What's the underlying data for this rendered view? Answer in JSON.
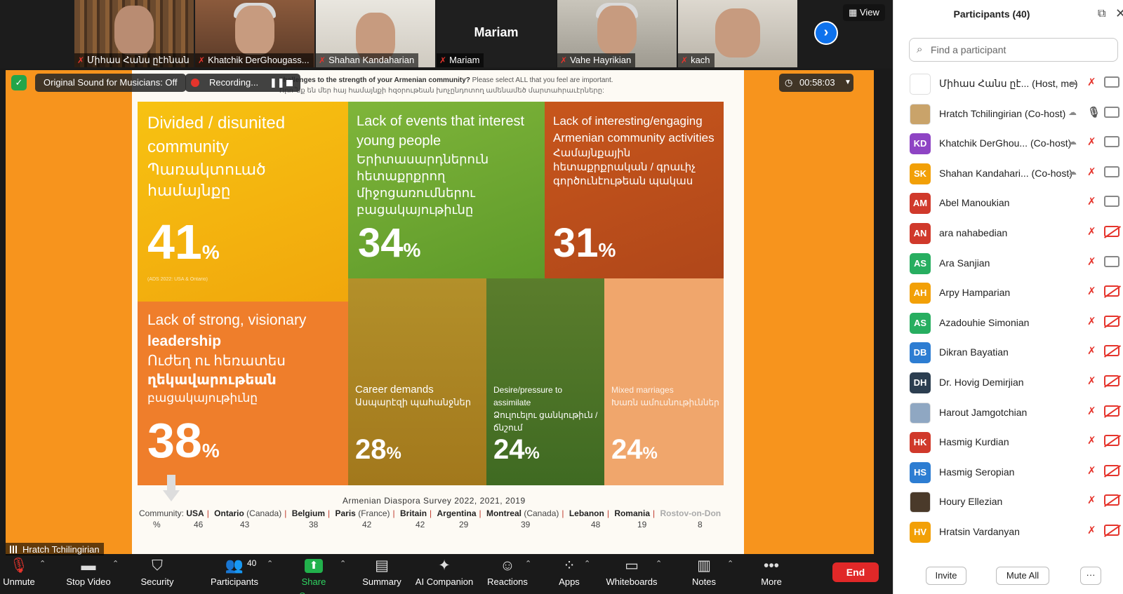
{
  "thumbnails": [
    {
      "name": "Միհաս Հանս ըէհնան"
    },
    {
      "name": "Khatchik DerGhougass..."
    },
    {
      "name": "Shahan Kandaharian"
    },
    {
      "name": "Mariam",
      "big_name": "Mariam"
    },
    {
      "name": "Vahe Hayrikian"
    },
    {
      "name": "kach"
    }
  ],
  "view_label": "View",
  "next_icon": "chevron-right-icon",
  "share": {
    "sound_label": "Original Sound for Musicians: Off",
    "recording_label": "Recording...",
    "timer": "00:58:03",
    "speaker": "Hratch Tchilingirian",
    "question_bold": "challenges to the strength of your Armenian community?",
    "question_rest": "Please select ALL that you feel are important.",
    "question_arm": "Որո՞նք են մեր հայ համայնքի հզօրութեան խոչընդոտող ամենամեծ մարտահրաւէրները:",
    "tiles": [
      {
        "id": "a",
        "title": "Divided / disunited community",
        "arm": "Պառակտուած համայնքը",
        "value": "41",
        "note": "(ADS 2022: USA & Ontario)"
      },
      {
        "id": "b",
        "title": "Lack of events that interest young people",
        "arm": "Երիտասարդներուն հետաքրքրող միջոցառումներու բացակայութիւնը",
        "value": "34"
      },
      {
        "id": "c",
        "title": "Lack of interesting/engaging Armenian community activities",
        "arm": "Համայնքային հետաքրքրական / գրաւիչ գործունէութեան պակաս",
        "value": "31"
      },
      {
        "id": "d",
        "title_1": "Lack of strong, visionary",
        "title_2": "leadership",
        "arm_1": "Ուժեղ ու հեռատես",
        "arm_2": "ղեկավարութեան",
        "arm_3": "բացակայութիւնը",
        "value": "38"
      },
      {
        "id": "e",
        "title": "Career demands",
        "arm": "Ասպարէզի պահանջներ",
        "value": "28"
      },
      {
        "id": "f",
        "title": "Desire/pressure to assimilate",
        "arm": "Ձուլուելու ցանկութիւն / ճնշում",
        "value": "24"
      },
      {
        "id": "g",
        "title": "Mixed marriages",
        "arm": "Խառն ամուսնութիւններ",
        "value": "24"
      }
    ],
    "pct_symbol": "%",
    "survey_title": "Armenian Diaspora Survey 2022, 2021, 2019",
    "community_label": "Community:",
    "communities": [
      {
        "name": "USA",
        "extra": "",
        "pct": "46"
      },
      {
        "name": "Ontario",
        "extra": " (Canada)",
        "pct": "43"
      },
      {
        "name": "Belgium",
        "extra": "",
        "pct": "38"
      },
      {
        "name": "Paris",
        "extra": " (France)",
        "pct": "42"
      },
      {
        "name": "Britain",
        "extra": "",
        "pct": "42"
      },
      {
        "name": "Argentina",
        "extra": "",
        "pct": "29"
      },
      {
        "name": "Montreal",
        "extra": " (Canada)",
        "pct": "39"
      },
      {
        "name": "Lebanon",
        "extra": "",
        "pct": "48"
      },
      {
        "name": "Romania",
        "extra": "",
        "pct": "19"
      },
      {
        "name": "Rostov-on-Don",
        "extra": "",
        "pct": "8"
      }
    ],
    "pct_label": "%"
  },
  "toolbar": {
    "unmute": "Unmute",
    "stop_video": "Stop Video",
    "security": "Security",
    "participants": "Participants",
    "participants_count": "40",
    "share_screen": "Share Screen",
    "summary": "Summary",
    "ai_companion": "AI Companion",
    "reactions": "Reactions",
    "apps": "Apps",
    "whiteboards": "Whiteboards",
    "notes": "Notes",
    "more": "More",
    "end": "End"
  },
  "panel": {
    "title": "Participants (40)",
    "search_placeholder": "Find a participant",
    "participants": [
      {
        "name": "Միհաս Հանս ըէ... (Host, me)",
        "initials": "",
        "color": "#ffffff",
        "cloud": true,
        "mic": "off",
        "cam": "on"
      },
      {
        "name": "Hratch Tchilingirian (Co-host)",
        "initials": "",
        "color": "#c9a36a",
        "cloud": true,
        "mic": "on",
        "cam": "on"
      },
      {
        "name": "Khatchik DerGhou... (Co-host)",
        "initials": "KD",
        "color": "#8e44c4",
        "cloud": true,
        "mic": "off",
        "cam": "on"
      },
      {
        "name": "Shahan Kandahari... (Co-host)",
        "initials": "SK",
        "color": "#f2a007",
        "cloud": true,
        "mic": "off",
        "cam": "on"
      },
      {
        "name": "Abel Manoukian",
        "initials": "AM",
        "color": "#d0392b",
        "cloud": false,
        "mic": "off",
        "cam": "on"
      },
      {
        "name": "ara nahabedian",
        "initials": "AN",
        "color": "#d0392b",
        "cloud": false,
        "mic": "off",
        "cam": "off"
      },
      {
        "name": "Ara Sanjian",
        "initials": "AS",
        "color": "#27ae60",
        "cloud": false,
        "mic": "off",
        "cam": "on"
      },
      {
        "name": "Arpy Hamparian",
        "initials": "AH",
        "color": "#f2a007",
        "cloud": false,
        "mic": "off",
        "cam": "off"
      },
      {
        "name": "Azadouhie Simonian",
        "initials": "AS",
        "color": "#27ae60",
        "cloud": false,
        "mic": "off",
        "cam": "off"
      },
      {
        "name": "Dikran Bayatian",
        "initials": "DB",
        "color": "#2d7dd2",
        "cloud": false,
        "mic": "off",
        "cam": "off"
      },
      {
        "name": "Dr. Hovig Demirjian",
        "initials": "DH",
        "color": "#2c3e50",
        "cloud": false,
        "mic": "off",
        "cam": "off"
      },
      {
        "name": "Harout Jamgotchian",
        "initials": "",
        "color": "#8fa7c2",
        "cloud": false,
        "mic": "off",
        "cam": "off"
      },
      {
        "name": "Hasmig Kurdian",
        "initials": "HK",
        "color": "#d0392b",
        "cloud": false,
        "mic": "off",
        "cam": "off"
      },
      {
        "name": "Hasmig Seropian",
        "initials": "HS",
        "color": "#2d7dd2",
        "cloud": false,
        "mic": "off",
        "cam": "off"
      },
      {
        "name": "Houry Ellezian",
        "initials": "",
        "color": "#4a3a2a",
        "cloud": false,
        "mic": "off",
        "cam": "off"
      },
      {
        "name": "Hratsin Vardanyan",
        "initials": "HV",
        "color": "#f2a007",
        "cloud": false,
        "mic": "off",
        "cam": "off"
      }
    ],
    "invite": "Invite",
    "mute_all": "Mute All",
    "more": "···"
  }
}
